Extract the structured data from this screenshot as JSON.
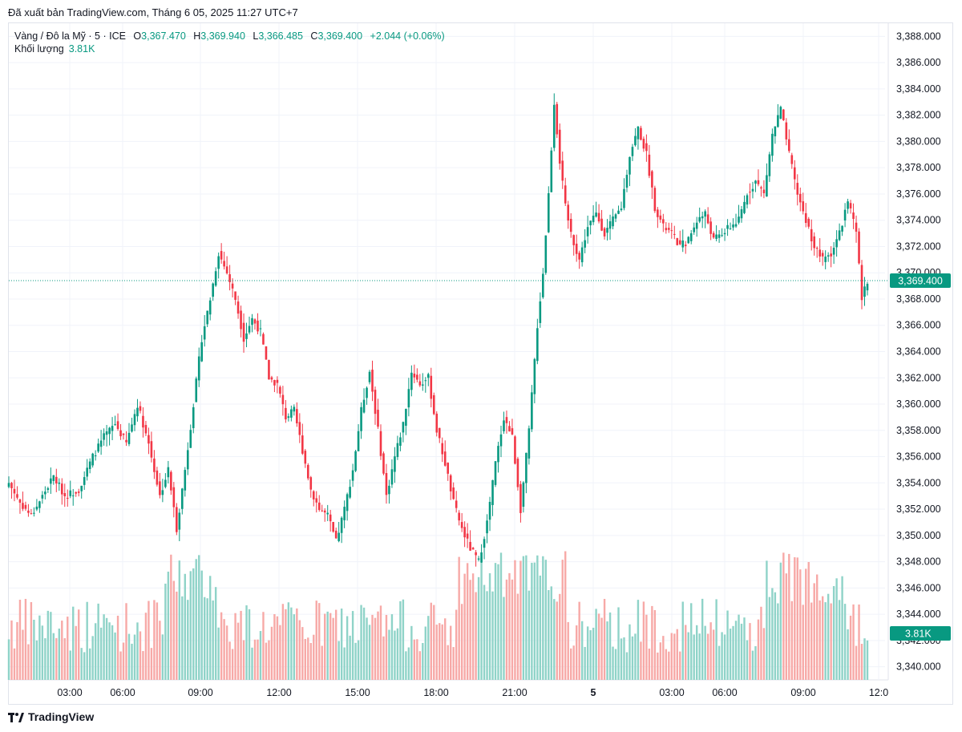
{
  "header": {
    "published": "Đã xuất bản TradingView.com, Tháng 6 05, 2025 11:27 UTC+7"
  },
  "legend": {
    "symbol": "Vàng / Đô la Mỹ · 5 · ICE",
    "o_label": "O",
    "o_value": "3,367.470",
    "h_label": "H",
    "h_value": "3,369.940",
    "l_label": "L",
    "l_value": "3,366.485",
    "c_label": "C",
    "c_value": "3,369.400",
    "change": "+2.044 (+0.06%)",
    "volume_label": "Khối lượng",
    "volume_value": "3.81K"
  },
  "footer": {
    "brand": "TradingView"
  },
  "colors": {
    "up": "#089981",
    "down": "#f23645",
    "vol_up": "#8fd3c8",
    "vol_down": "#f7a9a7"
  },
  "chart_data": {
    "type": "candlestick",
    "y_axis": {
      "min": 3339,
      "max": 3389,
      "ticks": [
        "3,340.000",
        "3,342.000",
        "3,344.000",
        "3,346.000",
        "3,348.000",
        "3,350.000",
        "3,352.000",
        "3,354.000",
        "3,356.000",
        "3,358.000",
        "3,360.000",
        "3,362.000",
        "3,364.000",
        "3,366.000",
        "3,368.000",
        "3,370.000",
        "3,372.000",
        "3,374.000",
        "3,376.000",
        "3,378.000",
        "3,380.000",
        "3,382.000",
        "3,384.000",
        "3,386.000",
        "3,388.000"
      ]
    },
    "x_axis": {
      "ticks": [
        "03:00",
        "06:00",
        "09:00",
        "12:00",
        "15:00",
        "18:00",
        "21:00",
        "5",
        "03:00",
        "06:00",
        "09:00",
        "12:0"
      ]
    },
    "last_price": "3,369.400",
    "last_volume": "3.81K",
    "close_path": [
      [
        0,
        3354.0
      ],
      [
        4,
        3352.5
      ],
      [
        8,
        3351.5
      ],
      [
        12,
        3353.0
      ],
      [
        16,
        3354.5
      ],
      [
        20,
        3353.0
      ],
      [
        25,
        3353.5
      ],
      [
        30,
        3356.0
      ],
      [
        34,
        3357.5
      ],
      [
        38,
        3358.5
      ],
      [
        42,
        3357.0
      ],
      [
        46,
        3360.0
      ],
      [
        50,
        3357.0
      ],
      [
        54,
        3353.0
      ],
      [
        57,
        3355.0
      ],
      [
        60,
        3350.5
      ],
      [
        63,
        3355.0
      ],
      [
        66,
        3360.0
      ],
      [
        69,
        3365.0
      ],
      [
        72,
        3368.0
      ],
      [
        75,
        3371.5
      ],
      [
        78,
        3370.0
      ],
      [
        81,
        3368.0
      ],
      [
        84,
        3365.0
      ],
      [
        87,
        3366.5
      ],
      [
        90,
        3365.5
      ],
      [
        93,
        3362.0
      ],
      [
        96,
        3361.5
      ],
      [
        99,
        3359.0
      ],
      [
        102,
        3359.5
      ],
      [
        105,
        3356.5
      ],
      [
        108,
        3353.5
      ],
      [
        111,
        3352.0
      ],
      [
        114,
        3351.5
      ],
      [
        117,
        3349.5
      ],
      [
        120,
        3352.0
      ],
      [
        123,
        3355.0
      ],
      [
        126,
        3359.5
      ],
      [
        129,
        3362.5
      ],
      [
        132,
        3358.0
      ],
      [
        135,
        3353.0
      ],
      [
        138,
        3356.0
      ],
      [
        141,
        3358.5
      ],
      [
        144,
        3362.5
      ],
      [
        147,
        3361.5
      ],
      [
        150,
        3362.0
      ],
      [
        153,
        3358.0
      ],
      [
        156,
        3355.5
      ],
      [
        159,
        3352.5
      ],
      [
        162,
        3350.5
      ],
      [
        165,
        3349.0
      ],
      [
        168,
        3348.0
      ],
      [
        171,
        3351.0
      ],
      [
        174,
        3355.5
      ],
      [
        177,
        3359.0
      ],
      [
        180,
        3357.5
      ],
      [
        183,
        3352.0
      ],
      [
        186,
        3358.0
      ],
      [
        189,
        3366.0
      ],
      [
        191,
        3370.0
      ],
      [
        193,
        3376.0
      ],
      [
        195,
        3383.0
      ],
      [
        197,
        3378.5
      ],
      [
        199,
        3375.0
      ],
      [
        201,
        3373.0
      ],
      [
        204,
        3371.0
      ],
      [
        207,
        3373.5
      ],
      [
        210,
        3374.5
      ],
      [
        213,
        3373.0
      ],
      [
        216,
        3374.0
      ],
      [
        219,
        3375.0
      ],
      [
        222,
        3379.0
      ],
      [
        225,
        3381.0
      ],
      [
        228,
        3379.0
      ],
      [
        231,
        3375.0
      ],
      [
        234,
        3373.5
      ],
      [
        237,
        3373.0
      ],
      [
        240,
        3372.0
      ],
      [
        243,
        3372.5
      ],
      [
        246,
        3374.0
      ],
      [
        249,
        3374.5
      ],
      [
        252,
        3372.5
      ],
      [
        255,
        3373.0
      ],
      [
        258,
        3373.5
      ],
      [
        261,
        3374.0
      ],
      [
        264,
        3376.0
      ],
      [
        267,
        3377.0
      ],
      [
        270,
        3376.0
      ],
      [
        273,
        3380.5
      ],
      [
        276,
        3382.5
      ],
      [
        279,
        3379.0
      ],
      [
        282,
        3376.0
      ],
      [
        285,
        3374.0
      ],
      [
        288,
        3372.0
      ],
      [
        291,
        3371.0
      ],
      [
        294,
        3371.5
      ],
      [
        297,
        3373.0
      ],
      [
        300,
        3375.5
      ],
      [
        303,
        3373.0
      ],
      [
        305,
        3368.0
      ],
      [
        307,
        3369.4
      ]
    ]
  }
}
